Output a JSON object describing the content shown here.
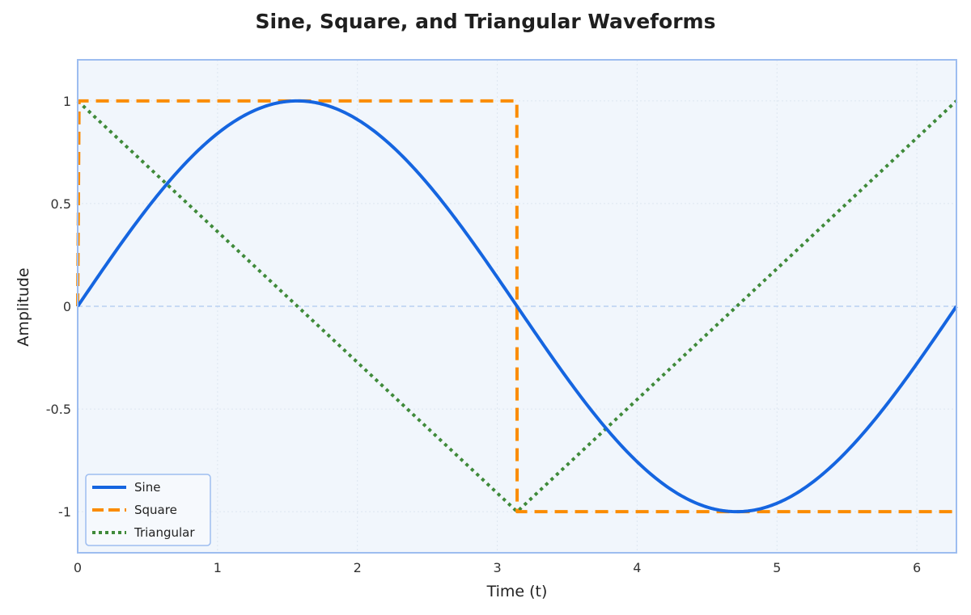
{
  "chart_data": {
    "type": "line",
    "title": "Sine, Square, and Triangular Waveforms",
    "xlabel": "Time (t)",
    "ylabel": "Amplitude",
    "xlim": [
      0,
      6.283
    ],
    "ylim": [
      -1.2,
      1.2
    ],
    "x_ticks": [
      0,
      1,
      2,
      3,
      4,
      5,
      6
    ],
    "x_tick_labels": [
      "0",
      "1",
      "2",
      "3",
      "4",
      "5",
      "6"
    ],
    "y_ticks": [
      1,
      0.5,
      0,
      -0.5,
      -1
    ],
    "y_tick_labels": [
      "1",
      "0.5",
      "0",
      "-0.5",
      "-1"
    ],
    "grid": true,
    "legend_position": "bottom-left",
    "colors": {
      "plot_background": "#f1f6fc",
      "plot_border": "#9dbdf0",
      "zero_line": "#b9d0f2",
      "grid": "#dde6f0"
    },
    "series": [
      {
        "name": "Sine",
        "color": "#1565e0",
        "style": "solid",
        "function": "sin(t)",
        "x": [
          0,
          0.524,
          1.047,
          1.571,
          2.094,
          2.618,
          3.142,
          3.665,
          4.189,
          4.712,
          5.236,
          5.76,
          6.283
        ],
        "values": [
          0,
          0.5,
          0.866,
          1,
          0.866,
          0.5,
          0,
          -0.5,
          -0.866,
          -1,
          -0.866,
          -0.5,
          0
        ]
      },
      {
        "name": "Square",
        "color": "#fb8c00",
        "style": "dashed",
        "function": "sign(sin(t))",
        "x": [
          0,
          0.01,
          3.14,
          3.142,
          6.283
        ],
        "values": [
          0,
          1,
          1,
          -1,
          -1
        ]
      },
      {
        "name": "Triangular",
        "color": "#3f8a3a",
        "style": "dotted",
        "x": [
          0,
          3.142,
          6.283
        ],
        "values": [
          1,
          -1,
          1
        ]
      }
    ]
  }
}
